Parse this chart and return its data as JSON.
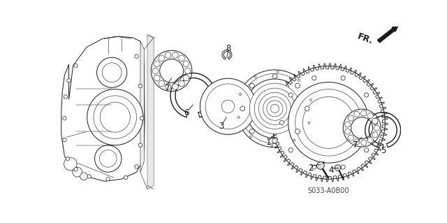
{
  "bg_color": "#ffffff",
  "line_color": "#1a1a1a",
  "fig_width": 6.4,
  "fig_height": 3.19,
  "dpi": 100,
  "fr_text": "FR.",
  "part_code": "S033-A0B00"
}
